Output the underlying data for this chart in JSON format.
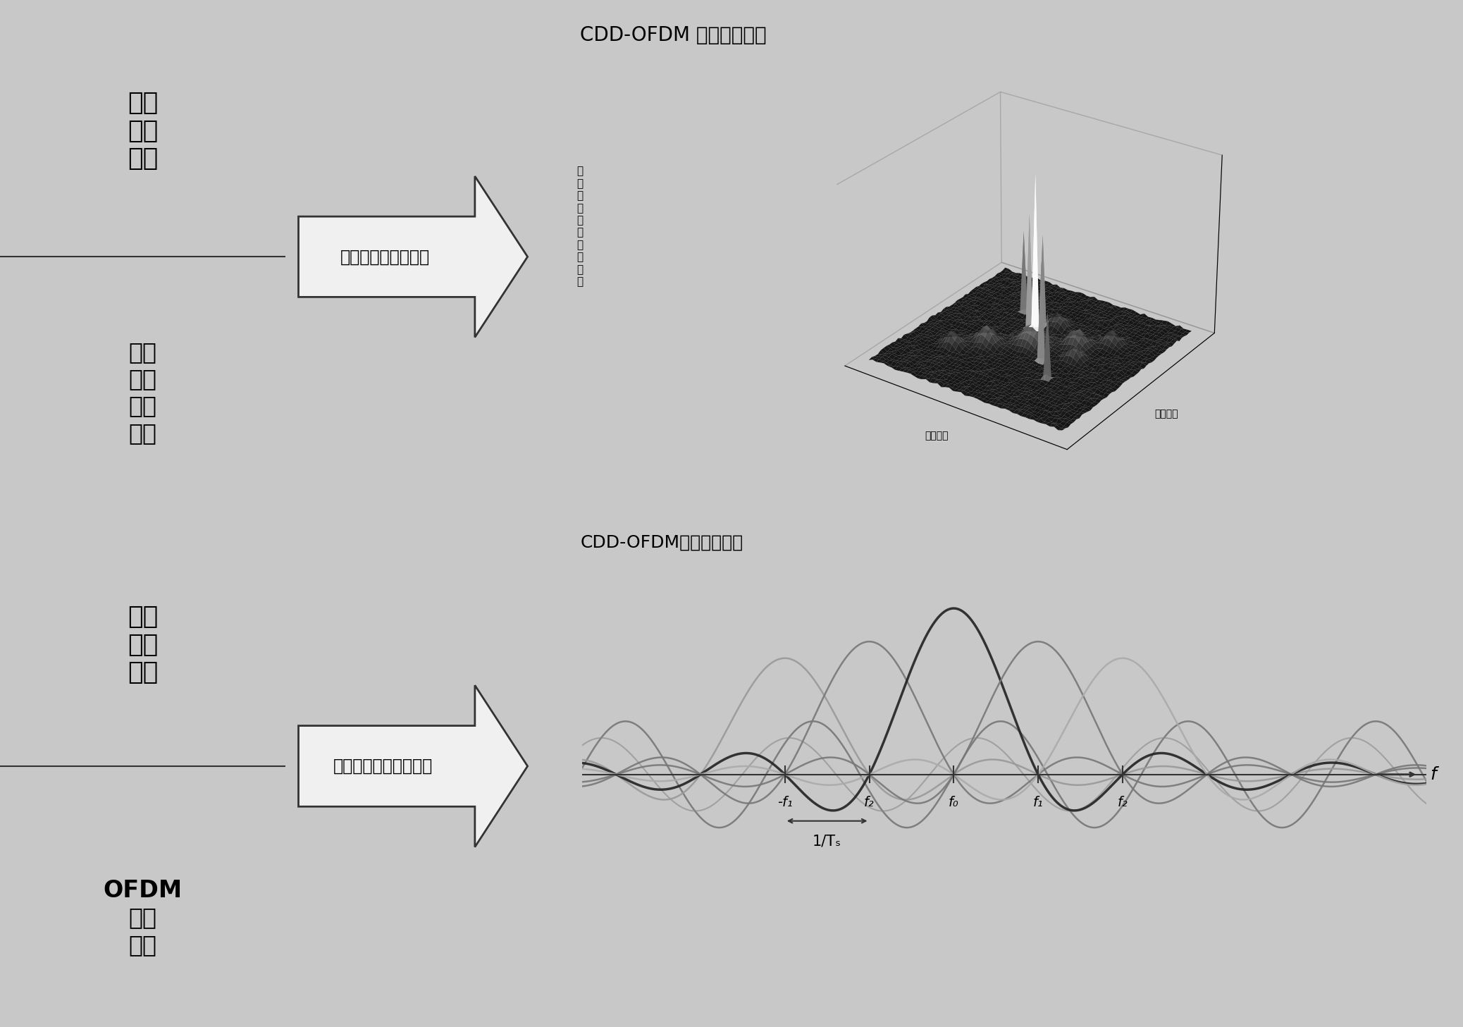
{
  "bg_color": "#c8c8c8",
  "panel_bg": "#ffffff",
  "left_bg": "#ffffff",
  "top_left_text1": "谱域\n传输\n信道",
  "top_left_text2": "循环\n延时\n调制\n信道",
  "bottom_left_text1": "频域\n传输\n信道",
  "bottom_left_text2": "OFDM\n调制\n信道",
  "top_arrow_text": "信号的统计特征设计",
  "bottom_arrow_text": "信号的确定性特征设计",
  "top_right_title": "CDD-OFDM 循环平稳谱域",
  "bottom_right_title": "CDD-OFDM循环平稳谱域",
  "top_3d_ylabel_vert": "循\n环\n自\n相\n关\n函\n数\n的\n幅\n度",
  "top_3d_xlabel": "循环频率",
  "top_3d_zlabel": "延时参数",
  "bottom_f_label": "f",
  "bottom_freq_positions": [
    -1.0,
    -0.5,
    0.0,
    0.5,
    1.0
  ],
  "bottom_freq_texts": [
    "-f₁",
    "f₂",
    "f₀",
    "f₁",
    "f₂"
  ],
  "bottom_period_text": "1/Tₛ",
  "sinc_centers": [
    -1.0,
    -0.5,
    0.0,
    0.5,
    1.0
  ],
  "sinc_colors": [
    "#999999",
    "#777777",
    "#222222",
    "#777777",
    "#aaaaaa"
  ],
  "sinc_amps": [
    0.7,
    0.8,
    1.0,
    0.8,
    0.7
  ],
  "low_freq_amp": 0.32,
  "low_freq_freq": 1.8,
  "low_freq_color": "#666666",
  "axis_color": "#333333",
  "border_color": "#333333"
}
